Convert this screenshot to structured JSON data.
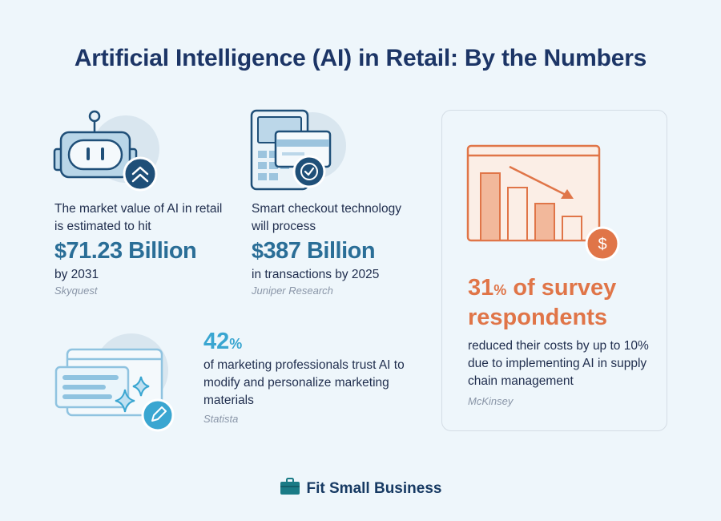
{
  "header": {
    "title": "Artificial Intelligence (AI) in Retail: By the Numbers"
  },
  "stats": {
    "market": {
      "intro": "The market value of AI in retail is estimated to hit",
      "currency": "$",
      "value": "71.23 Billion",
      "suffix": "by 2031",
      "source": "Skyquest",
      "icon": "robot-icon"
    },
    "checkout": {
      "intro": "Smart checkout technology will process",
      "currency": "$",
      "value": "387 Billion",
      "suffix": "in transactions by 2025",
      "source": "Juniper Research",
      "icon": "pos-terminal-icon"
    },
    "marketing": {
      "number": "42",
      "unit": "%",
      "text": "of marketing professionals trust AI to modify and personalize marketing materials",
      "source": "Statista",
      "icon": "ai-sparkle-edit-icon"
    },
    "supply_chain": {
      "number": "31",
      "unit": "%",
      "headline_rest": " of survey respondents",
      "text": "reduced their costs by up to 10% due to implementing AI in supply chain management",
      "source": "McKinsey",
      "icon": "declining-bar-chart-icon"
    }
  },
  "footer": {
    "brand": "Fit Small Business",
    "icon": "briefcase-logo-icon"
  },
  "colors": {
    "navy": "#1c3566",
    "blue": "#2a6e97",
    "light_blue": "#3aa6d1",
    "orange": "#e07548",
    "background": "#eef6fb"
  }
}
